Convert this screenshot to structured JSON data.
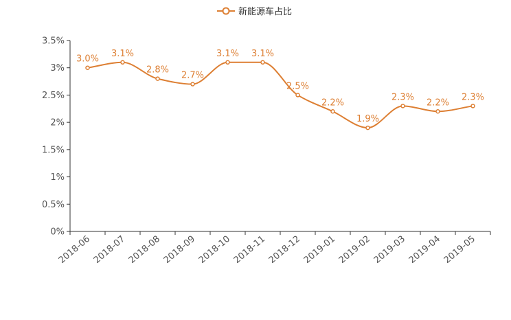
{
  "colors": {
    "series": "#dd7f33",
    "axis": "#333333",
    "tick_text": "#555555"
  },
  "chart_data": {
    "type": "line",
    "smooth": true,
    "x": [
      "2018-06",
      "2018-07",
      "2018-08",
      "2018-09",
      "2018-10",
      "2018-11",
      "2018-12",
      "2019-01",
      "2019-02",
      "2019-03",
      "2019-04",
      "2019-05"
    ],
    "series": [
      {
        "name": "新能源车占比",
        "values": [
          3.0,
          3.1,
          2.8,
          2.7,
          3.1,
          3.1,
          2.5,
          2.2,
          1.9,
          2.3,
          2.2,
          2.3
        ],
        "labels": [
          "3.0%",
          "3.1%",
          "2.8%",
          "2.7%",
          "3.1%",
          "3.1%",
          "2.5%",
          "2.2%",
          "1.9%",
          "2.3%",
          "2.2%",
          "2.3%"
        ]
      }
    ],
    "yticks": [
      "0%",
      "0.5%",
      "1%",
      "1.5%",
      "2%",
      "2.5%",
      "3%",
      "3.5%"
    ],
    "ylim": [
      0,
      3.5
    ],
    "legend_position": "top-center",
    "grid": false
  }
}
